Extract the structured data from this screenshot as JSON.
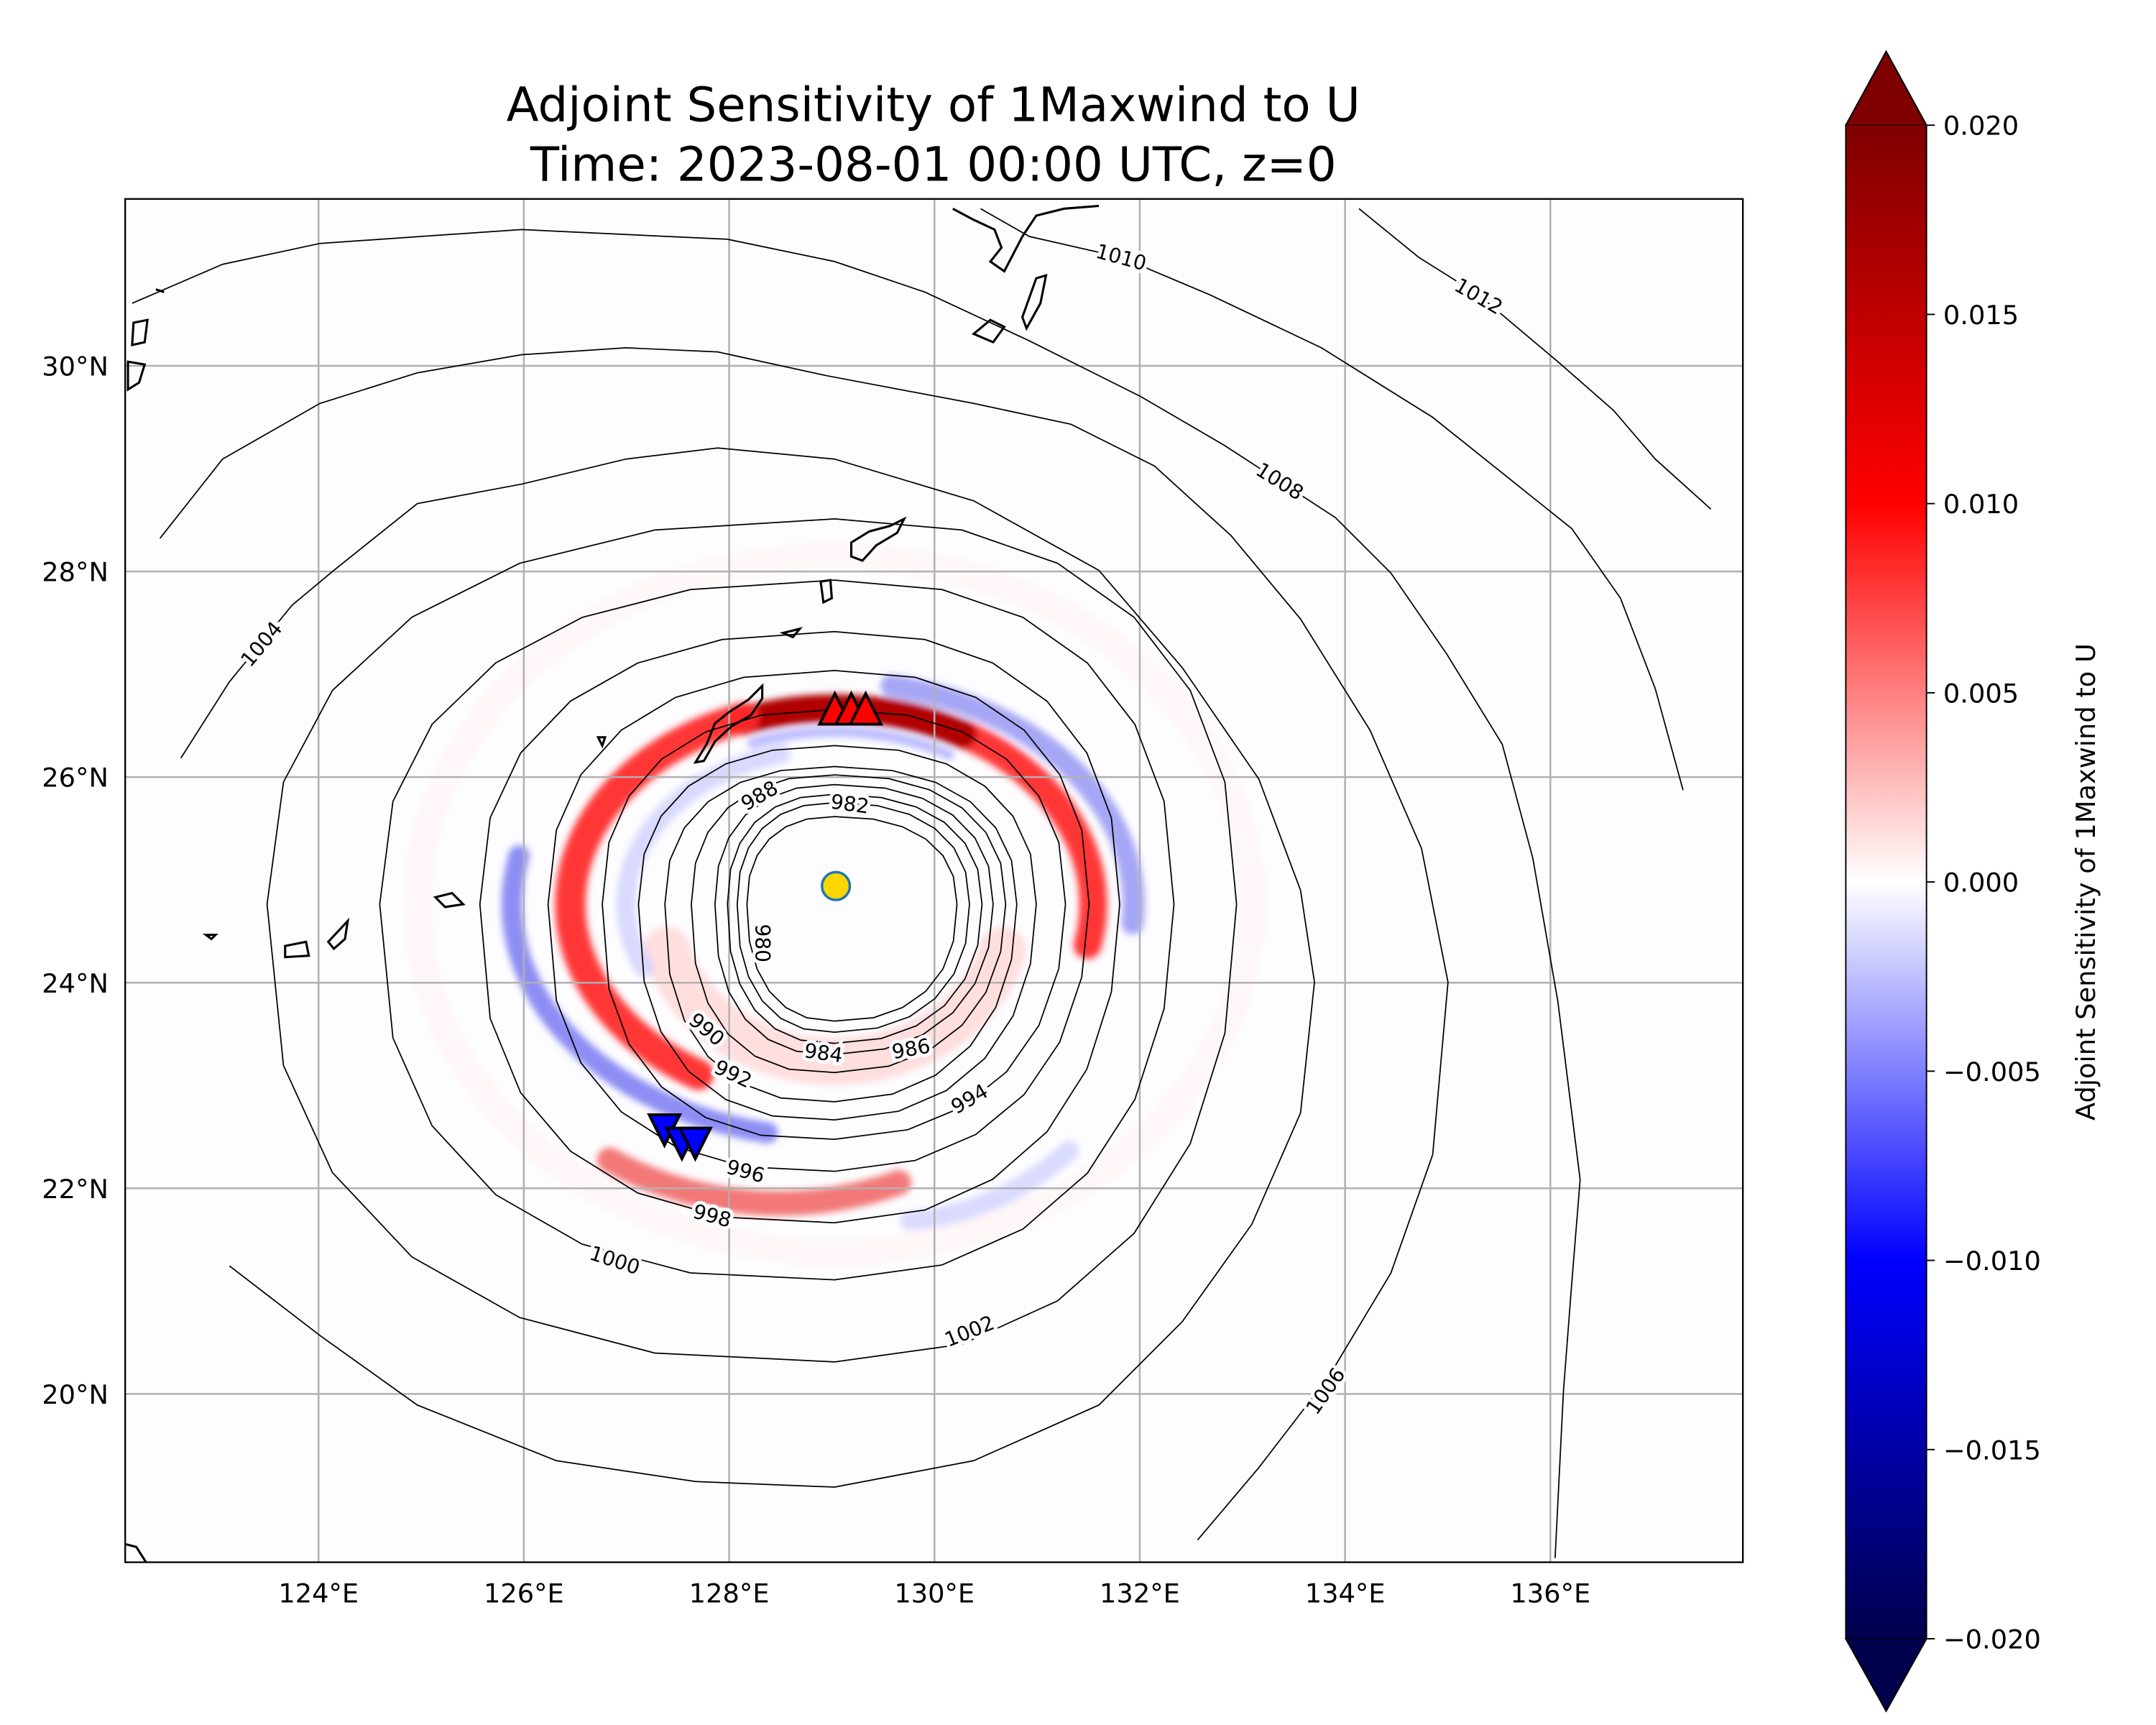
{
  "chart_data": {
    "type": "heatmap",
    "title_line1": "Adjoint Sensitivity of 1Maxwind to U",
    "title_line2": "Time: 2023-08-01 00:00 UTC, z=0",
    "xlabel": "",
    "ylabel": "",
    "xlim": [
      122.1,
      137.9
    ],
    "ylim": [
      18.4,
      31.6
    ],
    "x_ticks": [
      "124°E",
      "126°E",
      "128°E",
      "130°E",
      "132°E",
      "134°E",
      "136°E"
    ],
    "x_tick_values": [
      124,
      126,
      128,
      130,
      132,
      134,
      136
    ],
    "y_ticks": [
      "30°N",
      "28°N",
      "26°N",
      "24°N",
      "22°N",
      "20°N"
    ],
    "y_tick_values": [
      30,
      28,
      26,
      24,
      22,
      20
    ],
    "grid": true,
    "colormap": "seismic",
    "colormap_colors": [
      "#00004c",
      "#0000ff",
      "#ffffff",
      "#ff0000",
      "#7f0000"
    ],
    "colorbar": {
      "label": "Adjoint Sensitivity of 1Maxwind to U",
      "range": [
        -0.02,
        0.02
      ],
      "extend": "both",
      "placement": "right",
      "ticks": [
        "0.020",
        "0.015",
        "0.010",
        "0.005",
        "0.000",
        "−0.005",
        "−0.010",
        "−0.015",
        "−0.020"
      ],
      "tick_values": [
        0.02,
        0.015,
        0.01,
        0.005,
        0,
        -0.005,
        -0.01,
        -0.015,
        -0.02
      ]
    },
    "contours": {
      "levels": [
        "980",
        "982",
        "984",
        "986",
        "988",
        "990",
        "992",
        "994",
        "996",
        "998",
        "1000",
        "1002",
        "1004",
        "1006",
        "1008",
        "1010",
        "1012"
      ],
      "color": "#000000"
    },
    "storm_center": {
      "lon": 129.04,
      "lat": 24.94,
      "color": "#ffd700",
      "edge": "#1f77b4"
    },
    "max_positive_points": {
      "lon": [
        129.03,
        129.19,
        129.33
      ],
      "lat": [
        26.65,
        26.65,
        26.65
      ],
      "marker": "triangle-up",
      "color": "#ff0000"
    },
    "max_negative_points": {
      "lon": [
        127.37,
        127.54,
        127.67
      ],
      "lat": [
        22.58,
        22.45,
        22.45
      ],
      "marker": "triangle-down",
      "color": "#0000ff"
    }
  }
}
